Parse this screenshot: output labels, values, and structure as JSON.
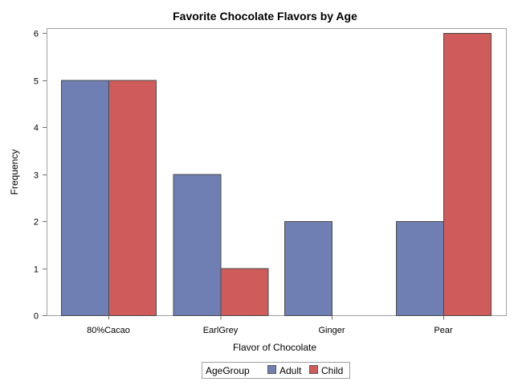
{
  "chart_data": {
    "type": "bar",
    "title": "Favorite Chocolate Flavors by Age",
    "xlabel": "Flavor of Chocolate",
    "ylabel": "Frequency",
    "categories": [
      "80%Cacao",
      "EarlGrey",
      "Ginger",
      "Pear"
    ],
    "series": [
      {
        "name": "Adult",
        "color": "#6f7eb3",
        "values": [
          5,
          3,
          2,
          2
        ]
      },
      {
        "name": "Child",
        "color": "#d05b5b",
        "values": [
          5,
          1,
          0,
          6
        ]
      }
    ],
    "ylim": [
      0,
      6
    ],
    "yticks": [
      0,
      1,
      2,
      3,
      4,
      5,
      6
    ],
    "grid": false,
    "legend": {
      "title": "AgeGroup",
      "placement": "bottom"
    }
  }
}
